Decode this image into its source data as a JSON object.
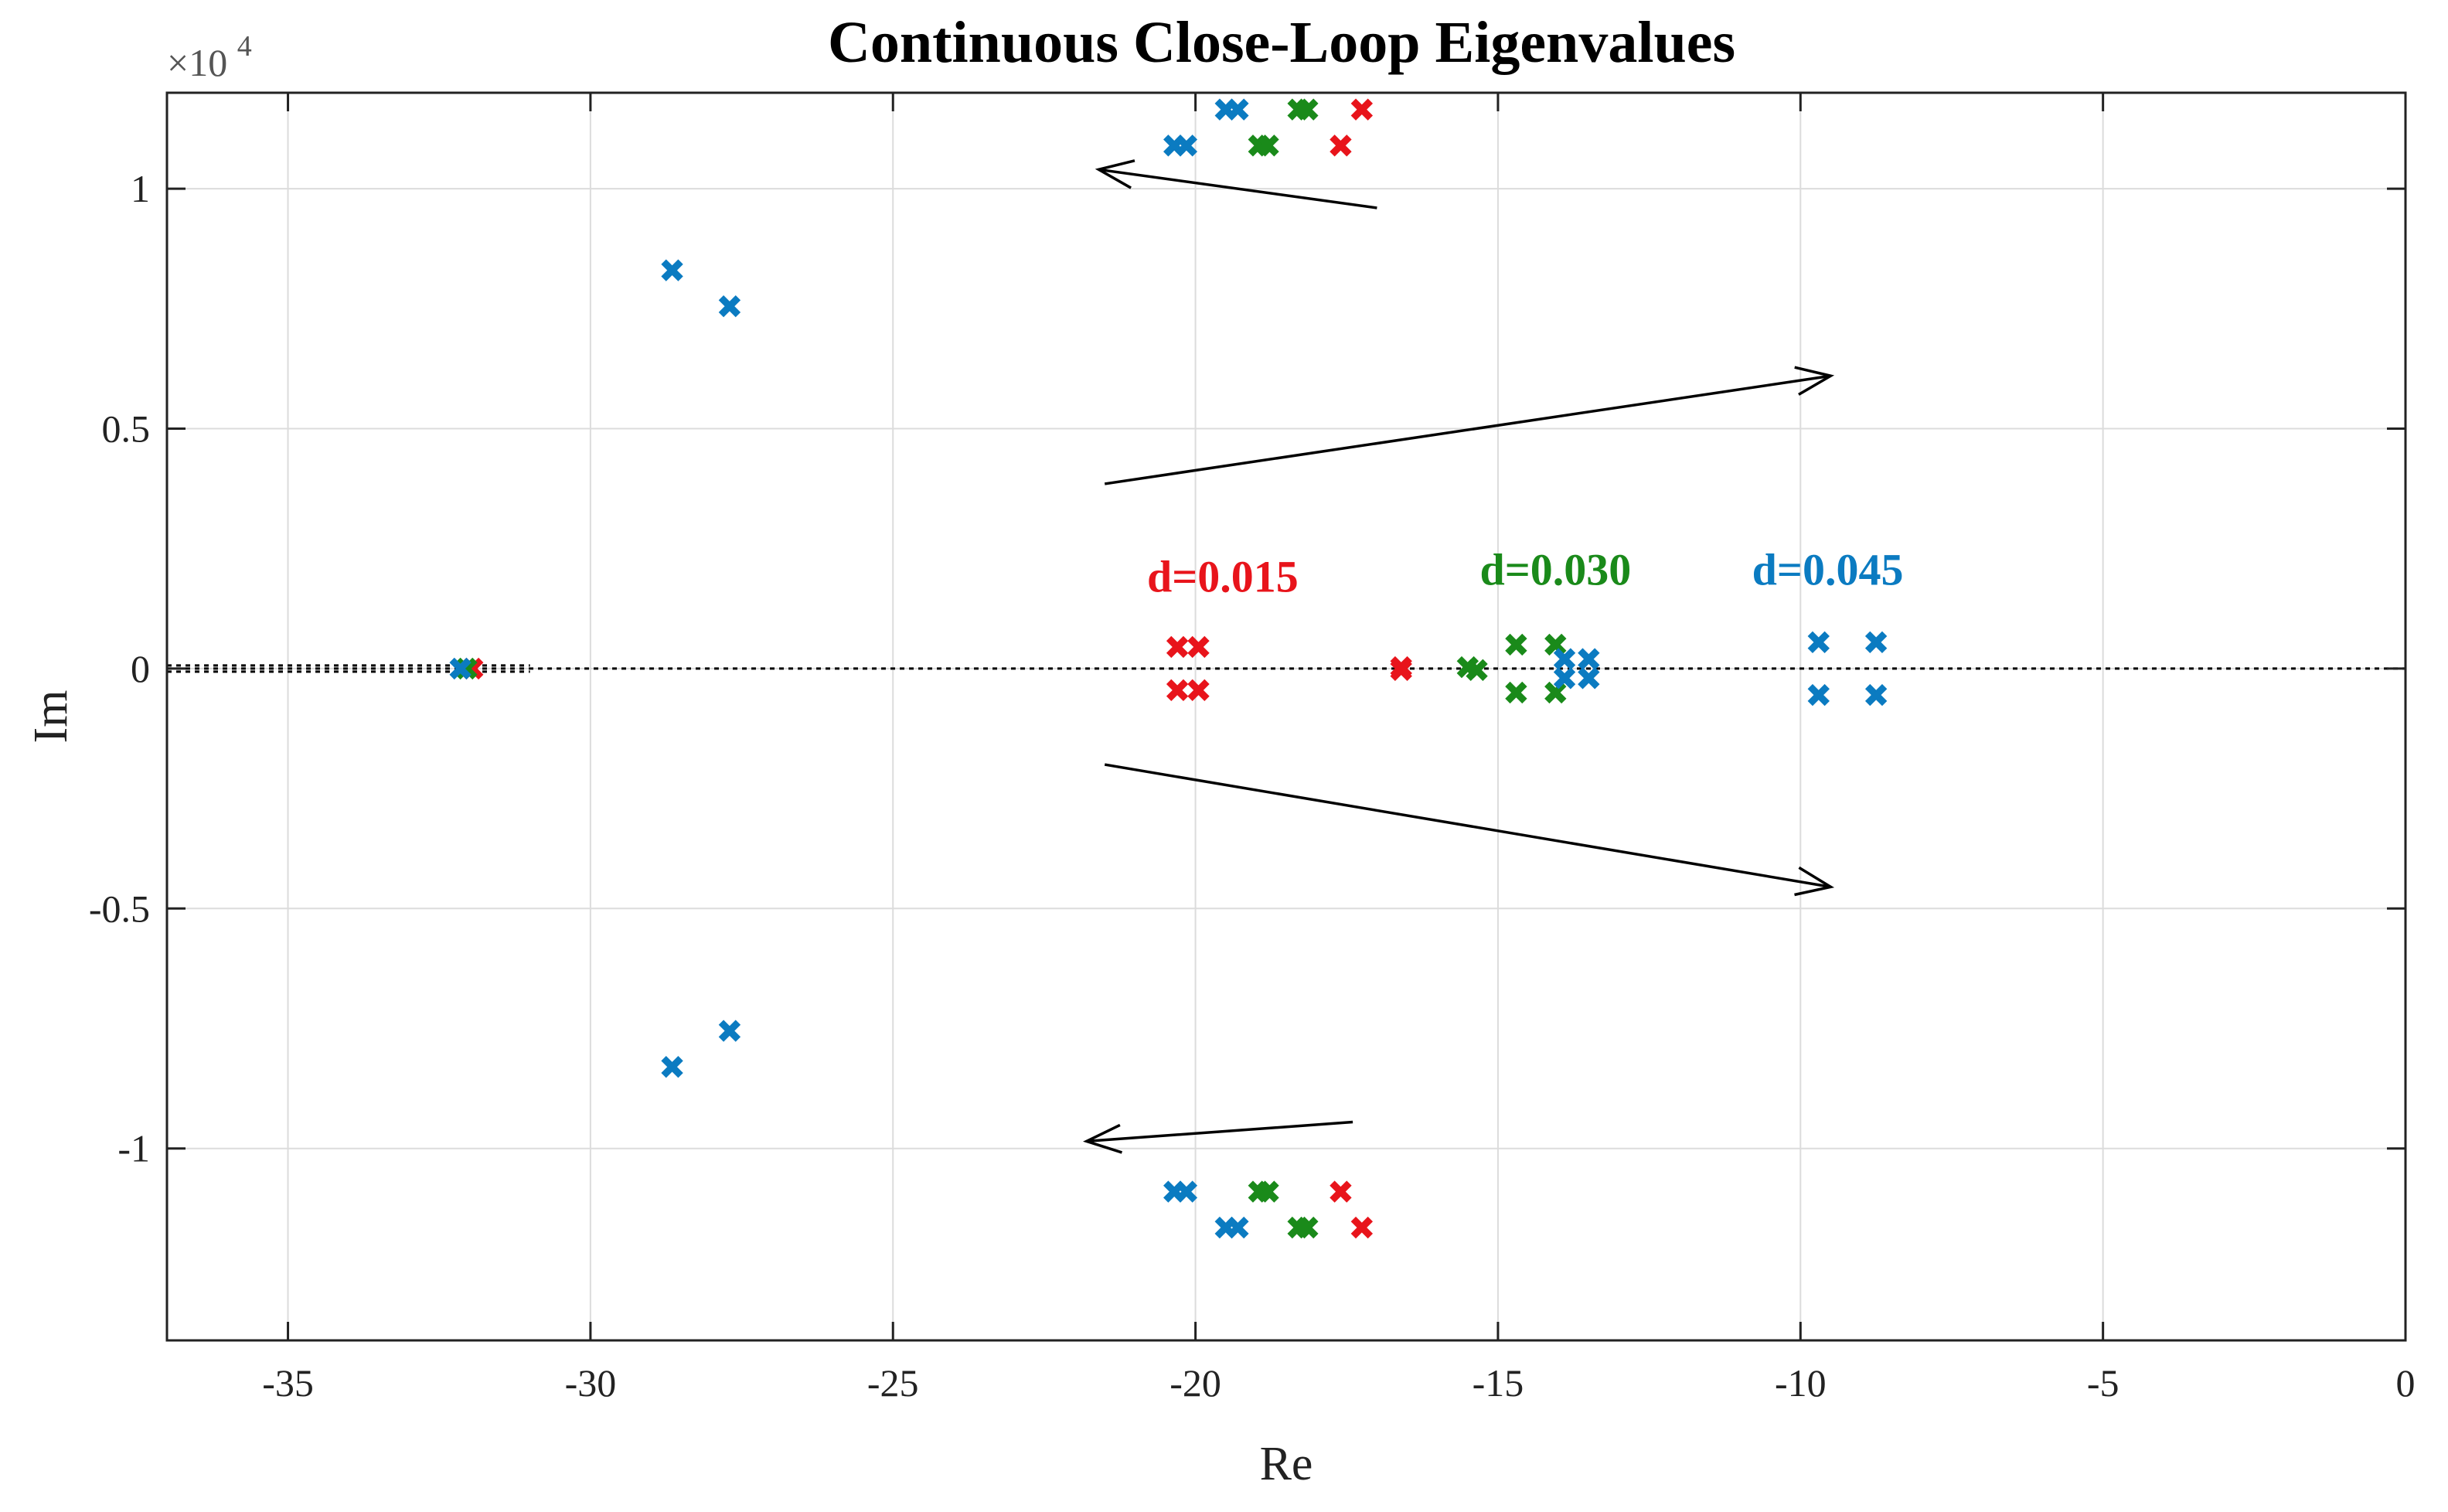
{
  "chart_data": {
    "type": "scatter",
    "title": "Continuous Close-Loop Eigenvalues",
    "xlabel": "Re",
    "ylabel": "Im",
    "y_exponent_label": "×10",
    "y_exponent_power": "4",
    "xlim": [
      -37,
      0
    ],
    "ylim": [
      -1.4,
      1.2
    ],
    "x_ticks": [
      -35,
      -30,
      -25,
      -20,
      -15,
      -10,
      -5,
      0
    ],
    "x_tick_labels": [
      "-35",
      "-30",
      "-25",
      "-20",
      "-15",
      "-10",
      "-5",
      "0"
    ],
    "y_ticks": [
      -1,
      -0.5,
      0,
      0.5,
      1
    ],
    "y_tick_labels": [
      "-1",
      "-0.5",
      "0",
      "0.5",
      "1"
    ],
    "grid": true,
    "marker": "x",
    "series": [
      {
        "name": "d=0.015",
        "color": "#e8141b",
        "points": [
          [
            -17.25,
            1.165
          ],
          [
            -17.6,
            1.09
          ],
          [
            -17.25,
            -1.165
          ],
          [
            -17.6,
            -1.09
          ],
          [
            -20.3,
            0.045
          ],
          [
            -19.95,
            0.045
          ],
          [
            -20.3,
            -0.045
          ],
          [
            -19.95,
            -0.045
          ],
          [
            -16.6,
            0.003
          ],
          [
            -16.6,
            -0.003
          ],
          [
            -31.95,
            0.0
          ]
        ]
      },
      {
        "name": "d=0.030",
        "color": "#1a8a1a",
        "points": [
          [
            -18.3,
            1.165
          ],
          [
            -18.15,
            1.165
          ],
          [
            -18.95,
            1.09
          ],
          [
            -18.8,
            1.09
          ],
          [
            -18.3,
            -1.165
          ],
          [
            -18.15,
            -1.165
          ],
          [
            -18.95,
            -1.09
          ],
          [
            -18.8,
            -1.09
          ],
          [
            -14.7,
            0.05
          ],
          [
            -14.05,
            0.05
          ],
          [
            -14.7,
            -0.05
          ],
          [
            -14.05,
            -0.05
          ],
          [
            -15.5,
            0.003
          ],
          [
            -15.35,
            -0.003
          ],
          [
            -32.05,
            0.0
          ]
        ]
      },
      {
        "name": "d=0.045",
        "color": "#0b7bc1",
        "points": [
          [
            -19.5,
            1.165
          ],
          [
            -19.3,
            1.165
          ],
          [
            -20.35,
            1.09
          ],
          [
            -20.15,
            1.09
          ],
          [
            -19.5,
            -1.165
          ],
          [
            -19.3,
            -1.165
          ],
          [
            -20.35,
            -1.09
          ],
          [
            -20.15,
            -1.09
          ],
          [
            -28.65,
            0.83
          ],
          [
            -27.7,
            0.755
          ],
          [
            -28.65,
            -0.83
          ],
          [
            -27.7,
            -0.755
          ],
          [
            -9.7,
            0.055
          ],
          [
            -8.75,
            0.055
          ],
          [
            -9.7,
            -0.055
          ],
          [
            -8.75,
            -0.055
          ],
          [
            -13.9,
            0.02
          ],
          [
            -13.5,
            0.02
          ],
          [
            -13.9,
            -0.02
          ],
          [
            -13.5,
            -0.02
          ],
          [
            -32.15,
            0.0
          ]
        ]
      }
    ],
    "annotations": [
      {
        "text": "d=0.015",
        "color": "#e8141b",
        "x": -20.8,
        "y": 0.16
      },
      {
        "text": "d=0.030",
        "color": "#1a8a1a",
        "x": -15.3,
        "y": 0.175
      },
      {
        "text": "d=0.045",
        "color": "#0b7bc1",
        "x": -10.8,
        "y": 0.175
      }
    ],
    "arrows": [
      {
        "from": [
          -17.0,
          0.96
        ],
        "to": [
          -21.6,
          1.04
        ]
      },
      {
        "from": [
          -21.5,
          0.385
        ],
        "to": [
          -9.5,
          0.61
        ]
      },
      {
        "from": [
          -21.5,
          -0.2
        ],
        "to": [
          -9.5,
          -0.455
        ]
      },
      {
        "from": [
          -17.4,
          -0.945
        ],
        "to": [
          -21.8,
          -0.985
        ]
      }
    ]
  }
}
